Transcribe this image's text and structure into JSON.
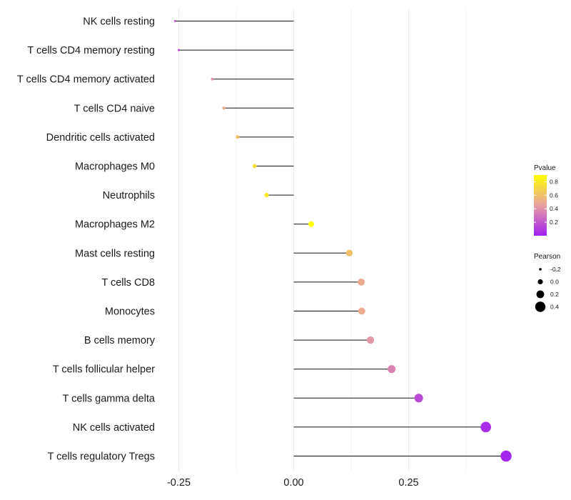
{
  "chart_data": {
    "type": "lollipop",
    "title": "",
    "xlabel": "",
    "ylabel": "",
    "xlim": [
      -0.3,
      0.5
    ],
    "x_ticks": [
      -0.25,
      0.0,
      0.25
    ],
    "x_tick_labels": [
      "-0.25",
      "0.00",
      "0.25"
    ],
    "categories": [
      "NK cells resting",
      "T cells CD4 memory resting",
      "T cells CD4 memory activated",
      "T cells CD4 naive",
      "Dendritic cells activated",
      "Macrophages M0",
      "Neutrophils",
      "Macrophages M2",
      "Mast cells resting",
      "T cells CD8",
      "Monocytes",
      "B cells memory",
      "T cells follicular helper",
      "T cells gamma delta",
      "NK cells activated",
      "T cells regulatory  Tregs"
    ],
    "pearson": [
      -0.258,
      -0.25,
      -0.177,
      -0.152,
      -0.122,
      -0.085,
      -0.059,
      0.038,
      0.121,
      0.147,
      0.148,
      0.167,
      0.213,
      0.272,
      0.418,
      0.462
    ],
    "pvalue": [
      0.2,
      0.1,
      0.42,
      0.5,
      0.6,
      0.75,
      0.8,
      0.9,
      0.6,
      0.5,
      0.5,
      0.42,
      0.35,
      0.15,
      0.05,
      0.02
    ],
    "legend": {
      "color": {
        "title": "Pvalue",
        "ticks": [
          0.8,
          0.6,
          0.4,
          0.2
        ],
        "tick_labels": [
          "0.8",
          "0.6",
          "0.4",
          "0.2"
        ],
        "range": [
          0.0,
          0.9
        ],
        "low_color": "#a020f0",
        "mid_color": "#e8a0a0",
        "high_color": "#ffff00"
      },
      "size": {
        "title": "Pearson",
        "values": [
          -0.2,
          0.0,
          0.2,
          0.4
        ],
        "labels": [
          "-0.2",
          "0.0",
          "0.2",
          "0.4"
        ]
      }
    },
    "grid": "vertical-only"
  }
}
